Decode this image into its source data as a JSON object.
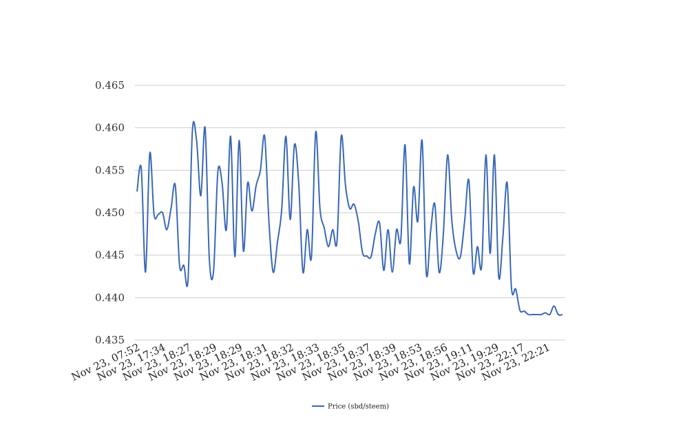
{
  "chart_data": {
    "type": "line",
    "x_labels": [
      "Nov 23, 07:52",
      "Nov 23, 17:34",
      "Nov 23, 18:27",
      "Nov 23, 18:29",
      "Nov 23, 18:29",
      "Nov 23, 18:31",
      "Nov 23, 18:32",
      "Nov 23, 18:33",
      "Nov 23, 18:35",
      "Nov 23, 18:37",
      "Nov 23, 18:39",
      "Nov 23, 18:53",
      "Nov 23, 18:56",
      "Nov 23, 19:11",
      "Nov 23, 19:29",
      "Nov 23, 22:17",
      "Nov 23, 22:21"
    ],
    "ylim": [
      0.435,
      0.465
    ],
    "yticks": [
      0.435,
      0.44,
      0.445,
      0.45,
      0.455,
      0.46,
      0.465
    ],
    "ytick_labels": [
      "0.435",
      "0.440",
      "0.445",
      "0.450",
      "0.455",
      "0.460",
      "0.465"
    ],
    "grid": true,
    "legend_position": "bottom-center",
    "colors": {
      "series": "#3a67b8",
      "grid": "#cccccc"
    },
    "series": [
      {
        "name": "Price (sbd/steem)",
        "values": [
          0.4525,
          0.4552,
          0.443,
          0.457,
          0.4498,
          0.4498,
          0.45,
          0.448,
          0.4505,
          0.4532,
          0.4438,
          0.4438,
          0.4422,
          0.4595,
          0.4585,
          0.452,
          0.46,
          0.4445,
          0.4432,
          0.4548,
          0.4535,
          0.448,
          0.459,
          0.4448,
          0.4585,
          0.4455,
          0.4535,
          0.4502,
          0.4532,
          0.455,
          0.459,
          0.449,
          0.443,
          0.4465,
          0.4503,
          0.459,
          0.4492,
          0.458,
          0.4535,
          0.443,
          0.448,
          0.4448,
          0.4595,
          0.4505,
          0.4482,
          0.446,
          0.448,
          0.4466,
          0.459,
          0.4532,
          0.4505,
          0.451,
          0.449,
          0.4453,
          0.4449,
          0.4448,
          0.4475,
          0.4488,
          0.4432,
          0.448,
          0.443,
          0.448,
          0.4468,
          0.458,
          0.444,
          0.453,
          0.449,
          0.4585,
          0.4428,
          0.4478,
          0.451,
          0.443,
          0.4475,
          0.4568,
          0.449,
          0.4455,
          0.4448,
          0.449,
          0.4538,
          0.443,
          0.446,
          0.4437,
          0.4568,
          0.4452,
          0.4568,
          0.4425,
          0.4472,
          0.4535,
          0.4412,
          0.441,
          0.4385,
          0.4384,
          0.438,
          0.438,
          0.438,
          0.438,
          0.4382,
          0.438,
          0.439,
          0.438,
          0.438
        ]
      }
    ]
  }
}
